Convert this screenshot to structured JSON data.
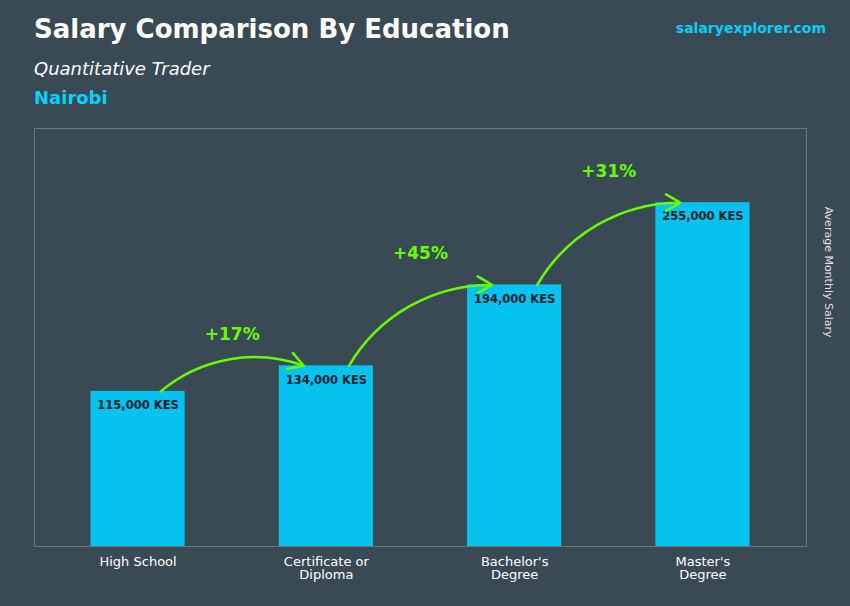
{
  "chart_data": {
    "type": "bar",
    "title": "Salary Comparison By Education",
    "subtitle": "Quantitative Trader",
    "city": "Nairobi",
    "brand": "salaryexplorer.com",
    "ylabel": "Average Monthly Salary",
    "categories": [
      "High School",
      "Certificate or\nDiploma",
      "Bachelor's\nDegree",
      "Master's\nDegree"
    ],
    "values": [
      115000,
      134000,
      194000,
      255000
    ],
    "value_labels": [
      "115,000 KES",
      "134,000 KES",
      "194,000 KES",
      "255,000 KES"
    ],
    "data_labels": true,
    "color": "#00cfff",
    "change_labels": [
      "+17%",
      "+45%",
      "+31%"
    ],
    "annotation_color": "#66ff00",
    "ylim": [
      0,
      310000
    ],
    "yticks": [],
    "grid": false,
    "tick_labels": "x"
  }
}
